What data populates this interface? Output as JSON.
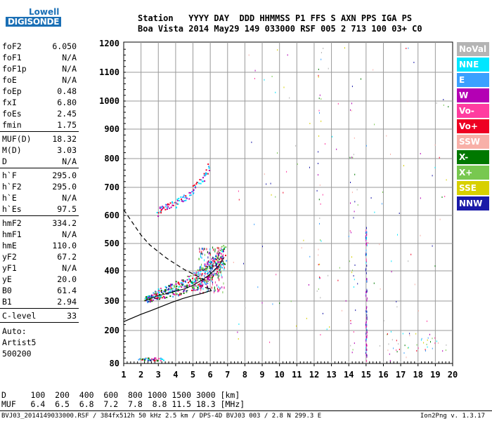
{
  "logo": {
    "line1": "Lowell",
    "line2": "DIGISONDE"
  },
  "header": {
    "labels": [
      "Station",
      "YYYY",
      "DAY",
      "DDD",
      "HHMMSS",
      "P1",
      "FFS",
      "S",
      "AXN",
      "PPS",
      "IGA",
      "PS"
    ],
    "values": [
      "Boa Vista",
      "2014",
      "May29",
      "149",
      "033000",
      "RSF",
      "005",
      "2",
      "713",
      "100",
      "03+",
      "C0"
    ]
  },
  "params": [
    {
      "label": "foF2",
      "value": "6.050"
    },
    {
      "label": "foF1",
      "value": "N/A"
    },
    {
      "label": "foF1p",
      "value": "N/A"
    },
    {
      "label": "foE",
      "value": "N/A"
    },
    {
      "label": "foEp",
      "value": "0.48"
    },
    {
      "label": "fxI",
      "value": "6.80"
    },
    {
      "label": "foEs",
      "value": "2.45"
    },
    {
      "label": "fmin",
      "value": "1.75"
    },
    {
      "label": "MUF(D)",
      "value": "18.32"
    },
    {
      "label": "M(D)",
      "value": "3.03"
    },
    {
      "label": "D",
      "value": "N/A"
    },
    {
      "label": "h`F",
      "value": "295.0"
    },
    {
      "label": "h`F2",
      "value": "295.0"
    },
    {
      "label": "h`E",
      "value": "N/A"
    },
    {
      "label": "h`Es",
      "value": "97.5"
    },
    {
      "label": "hmF2",
      "value": "334.2"
    },
    {
      "label": "hmF1",
      "value": "N/A"
    },
    {
      "label": "hmE",
      "value": "110.0"
    },
    {
      "label": "yF2",
      "value": "67.2"
    },
    {
      "label": "yF1",
      "value": "N/A"
    },
    {
      "label": "yE",
      "value": "20.0"
    },
    {
      "label": "B0",
      "value": "61.4"
    },
    {
      "label": "B1",
      "value": "2.94"
    },
    {
      "label": "C-level",
      "value": "33"
    }
  ],
  "auto": {
    "line1": "Auto:",
    "line2": "Artist5",
    "line3": "500200"
  },
  "legend": [
    {
      "label": "NoVal",
      "color": "#b4b4b4"
    },
    {
      "label": "NNE",
      "color": "#00e6ff"
    },
    {
      "label": "E",
      "color": "#3aa0ff"
    },
    {
      "label": "W",
      "color": "#b400b4"
    },
    {
      "label": "Vo-",
      "color": "#ff3ca0"
    },
    {
      "label": "Vo+",
      "color": "#ee0022"
    },
    {
      "label": "SSW",
      "color": "#f8b0a8"
    },
    {
      "label": "X-",
      "color": "#007800"
    },
    {
      "label": "X+",
      "color": "#78c850"
    },
    {
      "label": "SSE",
      "color": "#d8d000"
    },
    {
      "label": "NNW",
      "color": "#1a1aa8"
    }
  ],
  "muf_table": {
    "d_label": "D",
    "d_values": [
      "100",
      "200",
      "400",
      "600",
      "800",
      "1000",
      "1500",
      "3000"
    ],
    "d_unit": "[km]",
    "muf_label": "MUF",
    "muf_values": [
      "6.4",
      "6.5",
      "6.8",
      "7.2",
      "7.8",
      "8.8",
      "11.5",
      "18.3"
    ],
    "muf_unit": "[MHz]"
  },
  "footer": {
    "left": "BVJ03_2014149033000.RSF / 384fx512h 50 kHz 2.5 km / DPS-4D BVJ03 003 / 2.8 N 299.3 E",
    "right": "Ion2Png v. 1.3.17"
  },
  "chart_data": {
    "type": "scatter",
    "xlim": [
      1,
      20
    ],
    "ylim": [
      80,
      1200
    ],
    "x_ticks": [
      "1",
      "2",
      "3",
      "4",
      "5",
      "6",
      "7",
      "8",
      "9",
      "10",
      "11",
      "12",
      "13",
      "14",
      "15",
      "16",
      "17",
      "18",
      "19",
      "20"
    ],
    "y_ticks": [
      "80",
      "200",
      "300",
      "400",
      "500",
      "600",
      "700",
      "800",
      "900",
      "1000",
      "1100",
      "1200"
    ],
    "grid": true,
    "f2_trace": {
      "x": [
        2.2,
        2.6,
        3.0,
        3.5,
        4.0,
        4.5,
        5.0,
        5.3,
        5.6,
        5.9,
        6.2,
        6.5,
        6.8
      ],
      "y": [
        300,
        310,
        318,
        325,
        333,
        340,
        352,
        362,
        372,
        385,
        400,
        420,
        450
      ]
    },
    "multihop_trace": {
      "x": [
        2.8,
        3.2,
        3.6,
        4.0,
        4.4,
        4.8,
        5.2,
        5.6,
        5.9
      ],
      "y": [
        610,
        620,
        632,
        645,
        660,
        680,
        705,
        740,
        770
      ]
    },
    "es_trace": {
      "x": [
        1.8,
        2.2,
        2.6,
        3.0
      ],
      "y": [
        95,
        96,
        97,
        98
      ]
    },
    "profile_solid": {
      "x": [
        1.0,
        1.4,
        2.0,
        2.6,
        3.2,
        3.8,
        4.4,
        5.0,
        5.5,
        5.9,
        6.05,
        6.0,
        5.7
      ],
      "y": [
        230,
        240,
        255,
        268,
        282,
        296,
        308,
        318,
        325,
        332,
        334,
        340,
        345
      ]
    },
    "profile_dashed": {
      "x": [
        1.0,
        1.5,
        2.0,
        2.5,
        3.0,
        3.5,
        4.0,
        4.5,
        5.0,
        5.5,
        5.9
      ],
      "y": [
        620,
        575,
        530,
        495,
        470,
        445,
        425,
        405,
        390,
        375,
        365
      ]
    },
    "noise_column": {
      "x": 15.0,
      "y_from": 90,
      "y_to": 570
    }
  }
}
